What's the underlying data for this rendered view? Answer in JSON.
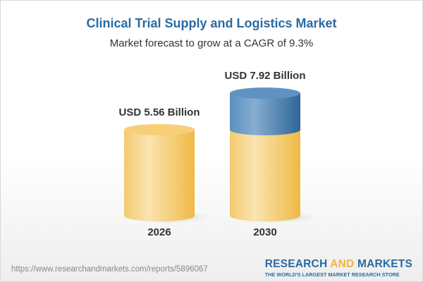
{
  "title": "Clinical Trial Supply and Logistics Market",
  "subtitle": "Market forecast to grow at a CAGR of 9.3%",
  "chart_data": {
    "type": "bar",
    "style": "3d-cylinder",
    "categories": [
      "2026",
      "2030"
    ],
    "values": [
      5.56,
      7.92
    ],
    "data_labels": [
      "USD 5.56 Billion",
      "USD 7.92 Billion"
    ],
    "unit": "USD Billion",
    "cagr": "9.3%",
    "colors": {
      "base": "#f3c25c",
      "growth": "#4f86b5"
    }
  },
  "footer": {
    "url": "https://www.researchandmarkets.com/reports/5896067",
    "logo_part1": "RESEARCH ",
    "logo_part2": "AND",
    "logo_part3": " MARKETS",
    "tagline": "THE WORLD'S LARGEST MARKET RESEARCH STORE"
  }
}
